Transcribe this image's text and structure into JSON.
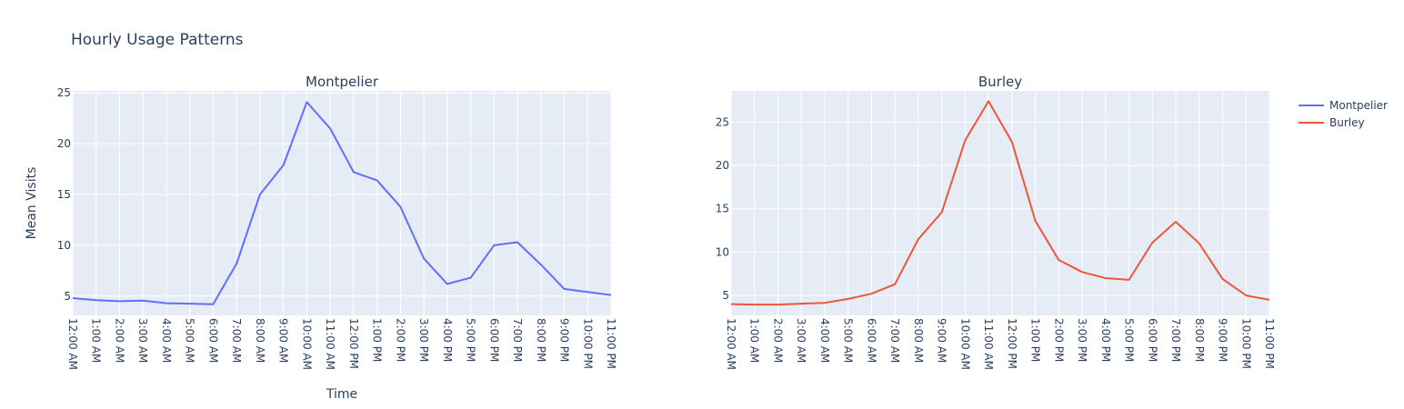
{
  "title": "Hourly Usage Patterns",
  "chart_data": [
    {
      "type": "line",
      "title": "Montpelier",
      "xlabel": "Time",
      "ylabel": "Mean Visits",
      "x": [
        "12:00 AM",
        "1:00 AM",
        "2:00 AM",
        "3:00 AM",
        "4:00 AM",
        "5:00 AM",
        "6:00 AM",
        "7:00 AM",
        "8:00 AM",
        "9:00 AM",
        "10:00 AM",
        "11:00 AM",
        "12:00 PM",
        "1:00 PM",
        "2:00 PM",
        "3:00 PM",
        "4:00 PM",
        "5:00 PM",
        "6:00 PM",
        "7:00 PM",
        "8:00 PM",
        "9:00 PM",
        "10:00 PM",
        "11:00 PM"
      ],
      "ylim": [
        3.1,
        25.2
      ],
      "yticks": [
        5,
        10,
        15,
        20,
        25
      ],
      "grid": true,
      "series": [
        {
          "name": "Montpelier",
          "color": "#636efa",
          "values": [
            4.8,
            4.6,
            4.5,
            4.55,
            4.3,
            4.25,
            4.2,
            8.2,
            15.0,
            17.9,
            24.1,
            21.5,
            17.2,
            16.4,
            13.8,
            8.7,
            6.2,
            6.8,
            10.0,
            10.3,
            8.1,
            5.7,
            5.4,
            5.1
          ]
        }
      ]
    },
    {
      "type": "line",
      "title": "Burley",
      "xlabel": "",
      "ylabel": "",
      "x": [
        "12:00 AM",
        "1:00 AM",
        "2:00 AM",
        "3:00 AM",
        "4:00 AM",
        "5:00 AM",
        "6:00 AM",
        "7:00 AM",
        "8:00 AM",
        "9:00 AM",
        "10:00 AM",
        "11:00 AM",
        "12:00 PM",
        "1:00 PM",
        "2:00 PM",
        "3:00 PM",
        "4:00 PM",
        "5:00 PM",
        "6:00 PM",
        "7:00 PM",
        "8:00 PM",
        "9:00 PM",
        "10:00 PM",
        "11:00 PM"
      ],
      "ylim": [
        2.7,
        28.6
      ],
      "yticks": [
        5,
        10,
        15,
        20,
        25
      ],
      "grid": true,
      "series": [
        {
          "name": "Burley",
          "color": "#ef553b",
          "values": [
            4.0,
            3.95,
            3.95,
            4.05,
            4.15,
            4.6,
            5.2,
            6.3,
            11.5,
            14.6,
            22.9,
            27.4,
            22.7,
            13.6,
            9.1,
            7.7,
            7.0,
            6.8,
            11.1,
            13.5,
            11.0,
            6.9,
            5.0,
            4.5
          ]
        }
      ]
    }
  ],
  "legend": {
    "placement": "top-right",
    "items": [
      {
        "label": "Montpelier",
        "color": "#636efa"
      },
      {
        "label": "Burley",
        "color": "#ef553b"
      }
    ]
  }
}
